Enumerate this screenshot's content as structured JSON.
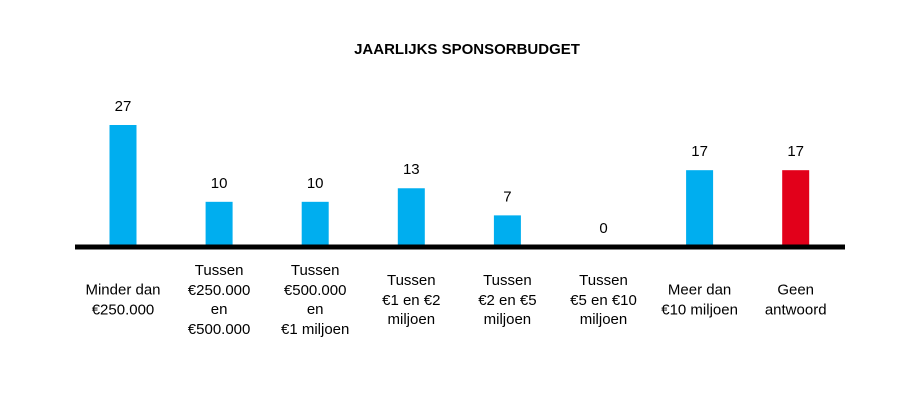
{
  "chart_data": {
    "type": "bar",
    "title": "JAARLIJKS SPONSORBUDGET",
    "categories": [
      "Minder dan\n€250.000",
      "Tussen\n€250.000\nen\n€500.000",
      "Tussen\n€500.000\nen\n€1 miljoen",
      "Tussen\n€1 en €2\nmiljoen",
      "Tussen\n€2 en €5\nmiljoen",
      "Tussen\n€5 en €10\nmiljoen",
      "Meer dan\n€10 miljoen",
      "Geen\nantwoord"
    ],
    "values": [
      27,
      10,
      10,
      13,
      7,
      0,
      17,
      17
    ],
    "colors": [
      "#00aeef",
      "#00aeef",
      "#00aeef",
      "#00aeef",
      "#00aeef",
      "#00aeef",
      "#00aeef",
      "#e2001a"
    ]
  }
}
